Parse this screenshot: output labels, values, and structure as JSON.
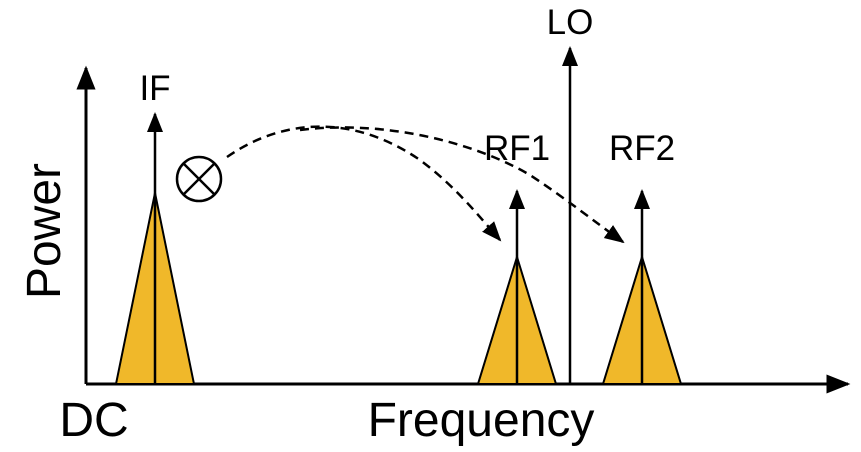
{
  "labels": {
    "y_axis": "Power",
    "x_axis": "Frequency",
    "origin": "DC",
    "if": "IF",
    "rf1": "RF1",
    "rf2": "RF2",
    "lo": "LO"
  },
  "colors": {
    "peak_fill": "#F0B82A",
    "stroke": "#000000",
    "background": "#FFFFFF"
  },
  "icons": {
    "mixer": "circle-times-icon"
  }
}
